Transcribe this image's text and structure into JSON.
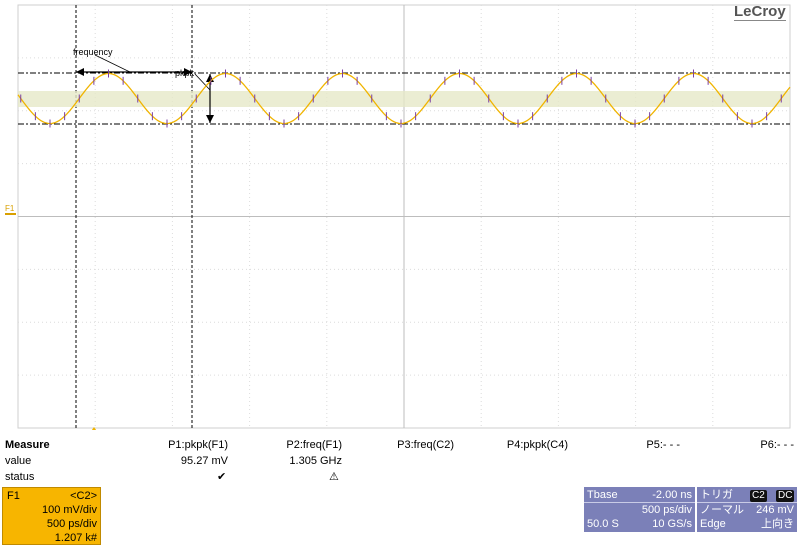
{
  "brand": "LeCroy",
  "annotations": {
    "frequency_label": "frequency",
    "pkpk_label": "pkpk"
  },
  "trace": {
    "label": "F1",
    "color": "#f0b400"
  },
  "measure": {
    "title": "Measure",
    "row_value": "value",
    "row_status": "status",
    "params": [
      {
        "label": "P1:pkpk(F1)",
        "value": "95.27 mV",
        "status": "✔"
      },
      {
        "label": "P2:freq(F1)",
        "value": "1.305 GHz",
        "status": "⚠"
      },
      {
        "label": "P3:freq(C2)",
        "value": "",
        "status": ""
      },
      {
        "label": "P4:pkpk(C4)",
        "value": "",
        "status": ""
      },
      {
        "label": "P5:- - -",
        "value": "",
        "status": ""
      },
      {
        "label": "P6:- - -",
        "value": "",
        "status": ""
      }
    ]
  },
  "f1_panel": {
    "name": "F1",
    "source": "<C2>",
    "vdiv": "100 mV/div",
    "tdiv": "500 ps/div",
    "count": "1.207 k#"
  },
  "timebase": {
    "title": "Tbase",
    "delay": "-2.00 ns",
    "tdiv": "500 ps/div",
    "memory": "50.0 S",
    "rate": "10 GS/s"
  },
  "trigger": {
    "title": "トリガ",
    "source": "C2",
    "coupling": "DC",
    "mode": "ノーマル",
    "level": "246 mV",
    "type": "Edge",
    "slope": "上向き"
  }
}
